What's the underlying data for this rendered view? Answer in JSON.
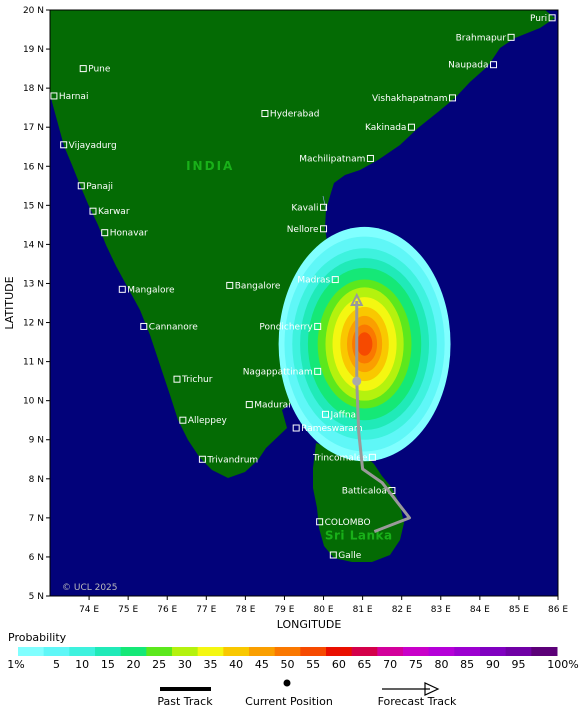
{
  "map": {
    "lat_range": [
      5,
      20
    ],
    "lon_range": [
      73,
      86
    ],
    "colors": {
      "ocean": "#02027a",
      "land": "#046b04",
      "track_past": "#000000",
      "track_forecast": "#9a9a9a"
    },
    "y_axis_title": "LATITUDE",
    "x_axis_title": "LONGITUDE",
    "lat_ticks": [
      {
        "v": 20,
        "label": "20 N"
      },
      {
        "v": 19,
        "label": "19 N"
      },
      {
        "v": 18,
        "label": "18 N"
      },
      {
        "v": 17,
        "label": "17 N"
      },
      {
        "v": 16,
        "label": "16 N"
      },
      {
        "v": 15,
        "label": "15 N"
      },
      {
        "v": 14,
        "label": "14 N"
      },
      {
        "v": 13,
        "label": "13 N"
      },
      {
        "v": 12,
        "label": "12 N"
      },
      {
        "v": 11,
        "label": "11 N"
      },
      {
        "v": 10,
        "label": "10 N"
      },
      {
        "v": 9,
        "label": "9 N"
      },
      {
        "v": 8,
        "label": "8 N"
      },
      {
        "v": 7,
        "label": "7 N"
      },
      {
        "v": 6,
        "label": "6 N"
      },
      {
        "v": 5,
        "label": "5 N"
      }
    ],
    "lon_ticks": [
      {
        "v": 74,
        "label": "74 E"
      },
      {
        "v": 75,
        "label": "75 E"
      },
      {
        "v": 76,
        "label": "76 E"
      },
      {
        "v": 77,
        "label": "77 E"
      },
      {
        "v": 78,
        "label": "78 E"
      },
      {
        "v": 79,
        "label": "79 E"
      },
      {
        "v": 80,
        "label": "80 E"
      },
      {
        "v": 81,
        "label": "81 E"
      },
      {
        "v": 82,
        "label": "82 E"
      },
      {
        "v": 83,
        "label": "83 E"
      },
      {
        "v": 84,
        "label": "84 E"
      },
      {
        "v": 85,
        "label": "85 E"
      },
      {
        "v": 86,
        "label": "86 E"
      }
    ],
    "cities": [
      {
        "name": "Puri",
        "lon": 85.85,
        "lat": 19.8
      },
      {
        "name": "Brahmapur",
        "lon": 84.8,
        "lat": 19.3
      },
      {
        "name": "Naupada",
        "lon": 84.35,
        "lat": 18.6
      },
      {
        "name": "Vishakhapatnam",
        "lon": 83.3,
        "lat": 17.75
      },
      {
        "name": "Kakinada",
        "lon": 82.25,
        "lat": 17.0
      },
      {
        "name": "Machilipatnam",
        "lon": 81.2,
        "lat": 16.2
      },
      {
        "name": "Kavali",
        "lon": 80.0,
        "lat": 14.95
      },
      {
        "name": "Nellore",
        "lon": 80.0,
        "lat": 14.4
      },
      {
        "name": "Madras",
        "lon": 80.3,
        "lat": 13.1
      },
      {
        "name": "Pondicherry",
        "lon": 79.85,
        "lat": 11.9
      },
      {
        "name": "Nagappattinam",
        "lon": 79.85,
        "lat": 10.75
      },
      {
        "name": "Jaffna",
        "lon": 80.05,
        "lat": 9.65
      },
      {
        "name": "Trincomalee",
        "lon": 81.25,
        "lat": 8.55
      },
      {
        "name": "Batticaloa",
        "lon": 81.75,
        "lat": 7.7
      },
      {
        "name": "COLOMBO",
        "lon": 79.9,
        "lat": 6.9
      },
      {
        "name": "Galle",
        "lon": 80.25,
        "lat": 6.05
      },
      {
        "name": "Pune",
        "lon": 73.85,
        "lat": 18.5
      },
      {
        "name": "Harnai",
        "lon": 73.1,
        "lat": 17.8
      },
      {
        "name": "Hyderabad",
        "lon": 78.5,
        "lat": 17.35
      },
      {
        "name": "Vijayadurg",
        "lon": 73.35,
        "lat": 16.55
      },
      {
        "name": "Panaji",
        "lon": 73.8,
        "lat": 15.5
      },
      {
        "name": "Karwar",
        "lon": 74.1,
        "lat": 14.85
      },
      {
        "name": "Honavar",
        "lon": 74.4,
        "lat": 14.3
      },
      {
        "name": "Bangalore",
        "lon": 77.6,
        "lat": 12.95
      },
      {
        "name": "Mangalore",
        "lon": 74.85,
        "lat": 12.85
      },
      {
        "name": "Cannanore",
        "lon": 75.4,
        "lat": 11.9
      },
      {
        "name": "Trichur",
        "lon": 76.25,
        "lat": 10.55
      },
      {
        "name": "Madurai",
        "lon": 78.1,
        "lat": 9.9
      },
      {
        "name": "Alleppey",
        "lon": 76.4,
        "lat": 9.5
      },
      {
        "name": "Rameswaram",
        "lon": 79.3,
        "lat": 9.3
      },
      {
        "name": "Trivandrum",
        "lon": 76.9,
        "lat": 8.5
      }
    ],
    "region_labels": [
      {
        "text": "INDIA",
        "lon": 77.1,
        "lat": 15.9,
        "color": "#19b019"
      },
      {
        "text": "Sri Lanka",
        "lon": 80.9,
        "lat": 6.45,
        "color": "#19b019"
      }
    ],
    "copyright": "© UCL 2025",
    "current_position": {
      "lon": 80.85,
      "lat": 10.5
    },
    "forecast_track": [
      {
        "lon": 80.85,
        "lat": 12.55
      },
      {
        "lon": 80.85,
        "lat": 10.5
      },
      {
        "lon": 80.9,
        "lat": 9.2
      },
      {
        "lon": 81.0,
        "lat": 8.25
      },
      {
        "lon": 81.5,
        "lat": 7.9
      },
      {
        "lon": 82.2,
        "lat": 7.0
      },
      {
        "lon": 81.3,
        "lat": 6.65
      }
    ],
    "probability_field": {
      "center": {
        "lon": 81.05,
        "lat": 11.45
      },
      "levels": [
        {
          "p": 1,
          "rlon": 2.2,
          "rlat": 3.0
        },
        {
          "p": 5,
          "rlon": 2.05,
          "rlat": 2.75
        },
        {
          "p": 10,
          "rlon": 1.85,
          "rlat": 2.45
        },
        {
          "p": 15,
          "rlon": 1.65,
          "rlat": 2.2
        },
        {
          "p": 20,
          "rlon": 1.45,
          "rlat": 1.95
        },
        {
          "p": 25,
          "rlon": 1.2,
          "rlat": 1.65
        },
        {
          "p": 30,
          "rlon": 1.0,
          "rlat": 1.45
        },
        {
          "p": 35,
          "rlon": 0.82,
          "rlat": 1.2
        },
        {
          "p": 40,
          "rlon": 0.62,
          "rlat": 0.95
        },
        {
          "p": 45,
          "rlon": 0.45,
          "rlat": 0.72
        },
        {
          "p": 50,
          "rlon": 0.32,
          "rlat": 0.5
        },
        {
          "p": 55,
          "rlon": 0.2,
          "rlat": 0.3
        }
      ]
    }
  },
  "legend": {
    "title": "Probability",
    "items": [
      {
        "label": "1%",
        "color": "#80ffff"
      },
      {
        "label": "5",
        "color": "#5ff7f7"
      },
      {
        "label": "10",
        "color": "#3ef2de"
      },
      {
        "label": "15",
        "color": "#20eab8"
      },
      {
        "label": "20",
        "color": "#15e877"
      },
      {
        "label": "25",
        "color": "#5ce81d"
      },
      {
        "label": "30",
        "color": "#b4f20e"
      },
      {
        "label": "35",
        "color": "#f4f711"
      },
      {
        "label": "40",
        "color": "#f9c800"
      },
      {
        "label": "45",
        "color": "#fa9f00"
      },
      {
        "label": "50",
        "color": "#fa7800"
      },
      {
        "label": "55",
        "color": "#f64a00"
      },
      {
        "label": "60",
        "color": "#e90f00"
      },
      {
        "label": "65",
        "color": "#d4004a"
      },
      {
        "label": "70",
        "color": "#d3009b"
      },
      {
        "label": "75",
        "color": "#c900c9"
      },
      {
        "label": "80",
        "color": "#b500d8"
      },
      {
        "label": "85",
        "color": "#9c00d0"
      },
      {
        "label": "90",
        "color": "#8000c0"
      },
      {
        "label": "95",
        "color": "#7000a5"
      },
      {
        "label": "100%",
        "color": "#5c0078"
      }
    ],
    "past_track_label": "Past Track",
    "current_position_label": "Current Position",
    "forecast_track_label": "Forecast Track"
  }
}
